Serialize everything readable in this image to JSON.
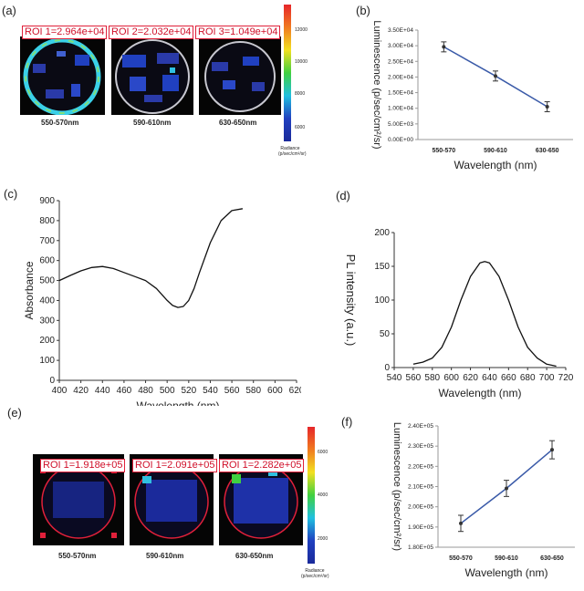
{
  "panel_labels": {
    "a": "(a)",
    "b": "(b)",
    "c": "(c)",
    "d": "(d)",
    "e": "(e)",
    "f": "(f)"
  },
  "panel_a": {
    "rois": [
      "ROI 1=2.964e+04",
      "ROI 2=2.032e+04",
      "ROI 3=1.049e+04"
    ],
    "dish_labels": [
      "550-570nm",
      "590-610nm",
      "630-650nm"
    ],
    "colorbar_ticks": [
      "12000",
      "10000",
      "8000",
      "6000"
    ],
    "colorbar_title": "Radiance (p/sec/cm²/sr)",
    "colors": {
      "roi": "#e0203a",
      "low": "#1a2a9a",
      "high": "#e6262a"
    }
  },
  "panel_e": {
    "rois": [
      "ROI 1=1.918e+05",
      "ROI 1=2.091e+05",
      "ROI 1=2.282e+05"
    ],
    "dish_labels": [
      "550-570nm",
      "590-610nm",
      "630-650nm"
    ],
    "colorbar_ticks": [
      "6000",
      "4000",
      "2000"
    ],
    "colorbar_title": "Radiance (p/sec/cm²/sr)"
  },
  "chart_data": [
    {
      "id": "b",
      "type": "line",
      "categories": [
        "550-570",
        "590-610",
        "630-650"
      ],
      "values": [
        29640,
        20320,
        10490
      ],
      "errors": [
        1600,
        1600,
        1600
      ],
      "xlabel": "Wavelength (nm)",
      "ylabel": "Luminescence (p/sec/cm²/sr)",
      "ylim": [
        0,
        35000
      ],
      "yticks": [
        0,
        5000,
        10000,
        15000,
        20000,
        25000,
        30000,
        35000
      ],
      "ytick_labels": [
        "0.00E+00",
        "5.00E+03",
        "1.00E+04",
        "1.50E+04",
        "2.00E+04",
        "2.50E+04",
        "3.00E+04",
        "3.50E+04"
      ],
      "color": "#3a5aa8"
    },
    {
      "id": "c",
      "type": "line",
      "x": [
        400,
        410,
        420,
        430,
        440,
        450,
        460,
        470,
        480,
        490,
        500,
        505,
        510,
        515,
        520,
        525,
        530,
        540,
        550,
        560,
        570
      ],
      "y": [
        500,
        525,
        548,
        565,
        570,
        560,
        540,
        520,
        500,
        460,
        400,
        375,
        365,
        370,
        400,
        460,
        540,
        690,
        800,
        850,
        860
      ],
      "xlabel": "Wavelength (nm)",
      "ylabel": "Absorbance",
      "xlim": [
        400,
        620
      ],
      "ylim": [
        0,
        900
      ],
      "xticks": [
        400,
        420,
        440,
        460,
        480,
        500,
        520,
        540,
        560,
        580,
        600,
        620
      ],
      "yticks": [
        0,
        100,
        200,
        300,
        400,
        500,
        600,
        700,
        800,
        900
      ]
    },
    {
      "id": "d",
      "type": "line",
      "x": [
        560,
        570,
        580,
        590,
        600,
        610,
        620,
        630,
        635,
        640,
        650,
        660,
        670,
        680,
        690,
        700,
        710
      ],
      "y": [
        5,
        8,
        14,
        30,
        60,
        100,
        135,
        155,
        157,
        155,
        135,
        100,
        60,
        30,
        14,
        5,
        2
      ],
      "xlabel": "Wavelength (nm)",
      "ylabel": "PL intensity (a.u.)",
      "xlim": [
        540,
        720
      ],
      "ylim": [
        0,
        200
      ],
      "xticks": [
        540,
        560,
        580,
        600,
        620,
        640,
        660,
        680,
        700,
        720
      ],
      "yticks": [
        0,
        50,
        100,
        150,
        200
      ]
    },
    {
      "id": "f",
      "type": "line",
      "categories": [
        "550-570",
        "590-610",
        "630-650"
      ],
      "values": [
        191800,
        209100,
        228200
      ],
      "errors": [
        4000,
        4000,
        4500
      ],
      "xlabel": "Wavelength (nm)",
      "ylabel": "Luminescence (p/sec/cm²/sr)",
      "ylim": [
        180000,
        240000
      ],
      "yticks": [
        180000,
        190000,
        200000,
        210000,
        220000,
        230000,
        240000
      ],
      "ytick_labels": [
        "1.80E+05",
        "1.90E+05",
        "2.00E+05",
        "2.10E+05",
        "2.20E+05",
        "2.30E+05",
        "2.40E+05"
      ],
      "color": "#3a5aa8"
    }
  ]
}
